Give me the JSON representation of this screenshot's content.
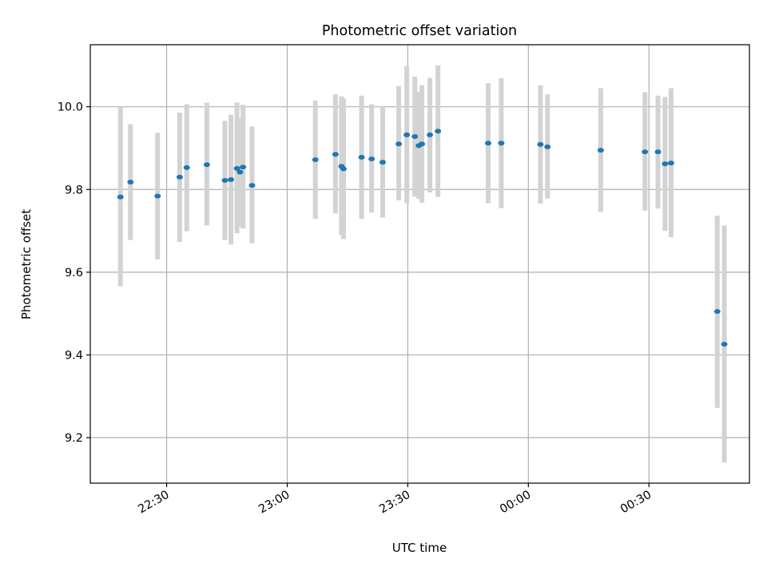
{
  "chart_data": {
    "type": "scatter",
    "title": "Photometric offset variation",
    "xlabel": "UTC time",
    "ylabel": "Photometric offset",
    "x_unit": "clock time (HH:MM), axis crosses midnight",
    "xlim": [
      "22:11",
      "00:55"
    ],
    "ylim": [
      9.09,
      10.15
    ],
    "x_tick_labels": [
      "22:30",
      "23:00",
      "23:30",
      "00:00",
      "00:30"
    ],
    "y_tick_labels": [
      "9.2",
      "9.4",
      "9.6",
      "9.8",
      "10.0"
    ],
    "y_ticks": [
      9.2,
      9.4,
      9.6,
      9.8,
      10.0
    ],
    "grid": true,
    "legend": "none",
    "colors": {
      "marker": "#1f77b4",
      "errorbar": "#d3d3d3",
      "grid": "#b0b0b0"
    },
    "points": [
      {
        "x": "22:18:30",
        "y": 9.782,
        "ymin": 9.566,
        "ymax": 10.0
      },
      {
        "x": "22:21:00",
        "y": 9.818,
        "ymin": 9.678,
        "ymax": 9.958
      },
      {
        "x": "22:27:45",
        "y": 9.784,
        "ymin": 9.631,
        "ymax": 9.937
      },
      {
        "x": "22:33:15",
        "y": 9.83,
        "ymin": 9.673,
        "ymax": 9.986
      },
      {
        "x": "22:35:00",
        "y": 9.853,
        "ymin": 9.699,
        "ymax": 10.006
      },
      {
        "x": "22:40:00",
        "y": 9.86,
        "ymin": 9.713,
        "ymax": 10.01
      },
      {
        "x": "22:44:30",
        "y": 9.822,
        "ymin": 9.678,
        "ymax": 9.966
      },
      {
        "x": "22:46:00",
        "y": 9.824,
        "ymin": 9.667,
        "ymax": 9.981
      },
      {
        "x": "22:47:30",
        "y": 9.851,
        "ymin": 9.694,
        "ymax": 10.01
      },
      {
        "x": "22:48:15",
        "y": 9.842,
        "ymin": 9.711,
        "ymax": 9.972
      },
      {
        "x": "22:49:00",
        "y": 9.854,
        "ymin": 9.706,
        "ymax": 10.005
      },
      {
        "x": "22:51:15",
        "y": 9.81,
        "ymin": 9.67,
        "ymax": 9.952
      },
      {
        "x": "23:07:00",
        "y": 9.872,
        "ymin": 9.729,
        "ymax": 10.015
      },
      {
        "x": "23:12:00",
        "y": 9.885,
        "ymin": 9.742,
        "ymax": 10.03
      },
      {
        "x": "23:13:30",
        "y": 9.856,
        "ymin": 9.69,
        "ymax": 10.025
      },
      {
        "x": "23:14:00",
        "y": 9.85,
        "ymin": 9.68,
        "ymax": 10.02
      },
      {
        "x": "23:18:30",
        "y": 9.878,
        "ymin": 9.729,
        "ymax": 10.027
      },
      {
        "x": "23:21:00",
        "y": 9.874,
        "ymin": 9.744,
        "ymax": 10.006
      },
      {
        "x": "23:23:45",
        "y": 9.866,
        "ymin": 9.732,
        "ymax": 10.002
      },
      {
        "x": "23:27:45",
        "y": 9.91,
        "ymin": 9.774,
        "ymax": 10.05
      },
      {
        "x": "23:29:45",
        "y": 9.932,
        "ymin": 9.767,
        "ymax": 10.098
      },
      {
        "x": "23:31:45",
        "y": 9.928,
        "ymin": 9.783,
        "ymax": 10.073
      },
      {
        "x": "23:32:45",
        "y": 9.906,
        "ymin": 9.777,
        "ymax": 10.036
      },
      {
        "x": "23:33:30",
        "y": 9.91,
        "ymin": 9.768,
        "ymax": 10.052
      },
      {
        "x": "23:35:30",
        "y": 9.932,
        "ymin": 9.793,
        "ymax": 10.07
      },
      {
        "x": "23:37:30",
        "y": 9.941,
        "ymin": 9.782,
        "ymax": 10.1
      },
      {
        "x": "23:50:00",
        "y": 9.912,
        "ymin": 9.767,
        "ymax": 10.057
      },
      {
        "x": "23:53:15",
        "y": 9.912,
        "ymin": 9.755,
        "ymax": 10.069
      },
      {
        "x": "00:03:00",
        "y": 9.909,
        "ymin": 9.766,
        "ymax": 10.052
      },
      {
        "x": "00:04:45",
        "y": 9.903,
        "ymin": 9.778,
        "ymax": 10.03
      },
      {
        "x": "00:18:00",
        "y": 9.895,
        "ymin": 9.746,
        "ymax": 10.045
      },
      {
        "x": "00:29:00",
        "y": 9.891,
        "ymin": 9.749,
        "ymax": 10.035
      },
      {
        "x": "00:32:15",
        "y": 9.891,
        "ymin": 9.754,
        "ymax": 10.027
      },
      {
        "x": "00:34:00",
        "y": 9.862,
        "ymin": 9.7,
        "ymax": 10.024
      },
      {
        "x": "00:35:30",
        "y": 9.864,
        "ymin": 9.685,
        "ymax": 10.045
      },
      {
        "x": "00:47:00",
        "y": 9.505,
        "ymin": 9.272,
        "ymax": 9.737
      },
      {
        "x": "00:48:45",
        "y": 9.426,
        "ymin": 9.14,
        "ymax": 9.713
      }
    ]
  }
}
